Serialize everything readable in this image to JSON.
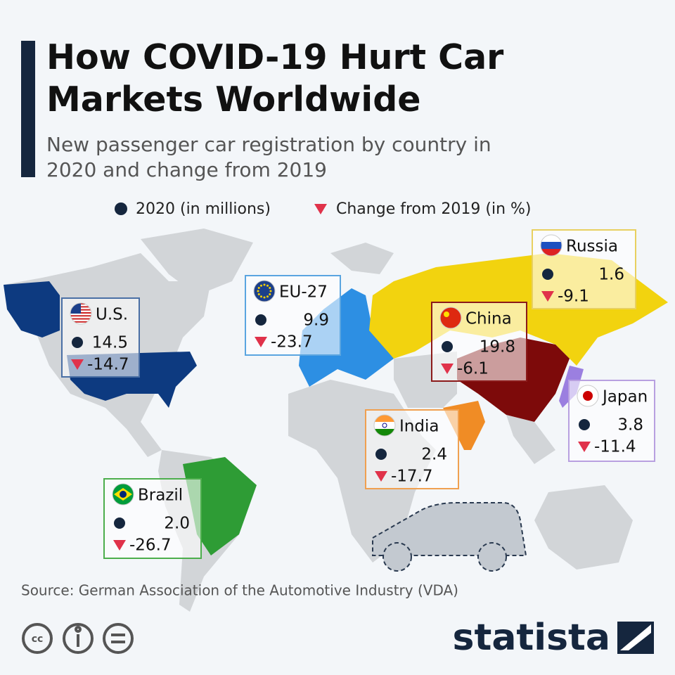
{
  "title": "How COVID-19 Hurt Car Markets Worldwide",
  "subtitle": "New passenger car registration by country in 2020 and change from 2019",
  "legend": [
    "2020 (in millions)",
    "Change from 2019 (in %)"
  ],
  "countries": [
    {
      "name": "U.S.",
      "registrations": "14.5",
      "change": "-14.7"
    },
    {
      "name": "EU-27",
      "registrations": "9.9",
      "change": "-23.7"
    },
    {
      "name": "Russia",
      "registrations": "1.6",
      "change": "-9.1"
    },
    {
      "name": "China",
      "registrations": "19.8",
      "change": "-6.1"
    },
    {
      "name": "Japan",
      "registrations": "3.8",
      "change": "-11.4"
    },
    {
      "name": "India",
      "registrations": "2.4",
      "change": "-17.7"
    },
    {
      "name": "Brazil",
      "registrations": "2.0",
      "change": "-26.7"
    }
  ],
  "source": "Source: German Association of the Automotive Industry (VDA)",
  "brand": "statista"
}
